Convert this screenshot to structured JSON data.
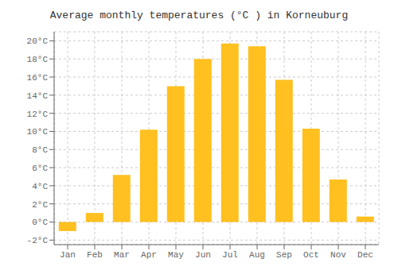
{
  "chart_data": {
    "type": "bar",
    "title": "Average monthly temperatures (°C ) in Korneuburg",
    "categories": [
      "Jan",
      "Feb",
      "Mar",
      "Apr",
      "May",
      "Jun",
      "Jul",
      "Aug",
      "Sep",
      "Oct",
      "Nov",
      "Dec"
    ],
    "values": [
      -1.0,
      1.0,
      5.2,
      10.2,
      15.0,
      18.0,
      19.7,
      19.4,
      15.7,
      10.3,
      4.7,
      0.6
    ],
    "color": "#FFC020",
    "ylim": [
      -2.5,
      21
    ],
    "yticks": [
      {
        "value": -2,
        "label": "-2°C"
      },
      {
        "value": 0,
        "label": "0°C"
      },
      {
        "value": 2,
        "label": "2°C"
      },
      {
        "value": 4,
        "label": "4°C"
      },
      {
        "value": 6,
        "label": "6°C"
      },
      {
        "value": 8,
        "label": "8°C"
      },
      {
        "value": 10,
        "label": "10°C"
      },
      {
        "value": 12,
        "label": "12°C"
      },
      {
        "value": 14,
        "label": "14°C"
      },
      {
        "value": 16,
        "label": "16°C"
      },
      {
        "value": 18,
        "label": "18°C"
      },
      {
        "value": 20,
        "label": "20°C"
      }
    ],
    "grid": true
  }
}
